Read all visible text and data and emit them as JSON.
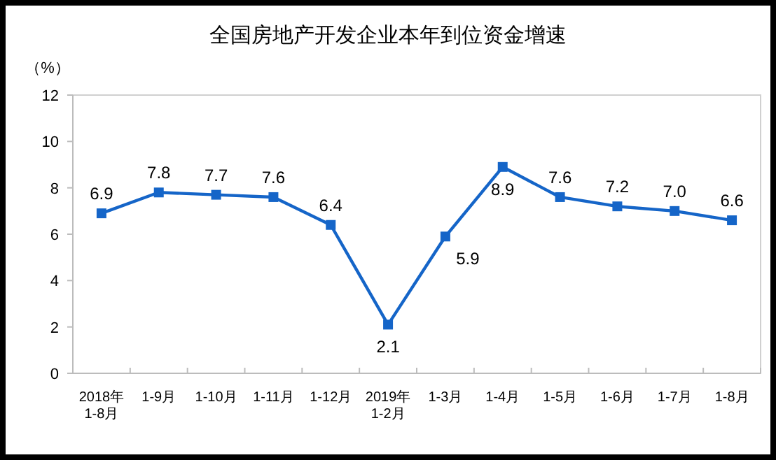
{
  "chart_data": {
    "type": "line",
    "title": "全国房地产开发企业本年到位资金增速",
    "ylabel": "（%）",
    "categories": [
      "2018年\n1-8月",
      "1-9月",
      "1-10月",
      "1-11月",
      "1-12月",
      "2019年\n1-2月",
      "1-3月",
      "1-4月",
      "1-5月",
      "1-6月",
      "1-7月",
      "1-8月"
    ],
    "series": [
      {
        "color": "#1565c8",
        "values": [
          6.9,
          7.8,
          7.7,
          7.6,
          6.4,
          2.1,
          5.9,
          8.9,
          7.6,
          7.2,
          7.0,
          6.6
        ],
        "value_labels": [
          "6.9",
          "7.8",
          "7.7",
          "7.6",
          "6.4",
          "2.1",
          "5.9",
          "8.9",
          "7.6",
          "7.2",
          "7.0",
          "6.6"
        ]
      }
    ],
    "ylim": [
      0,
      12
    ],
    "yticks": [
      0,
      2,
      4,
      6,
      8,
      10,
      12
    ],
    "marker": "square",
    "grid": false
  }
}
